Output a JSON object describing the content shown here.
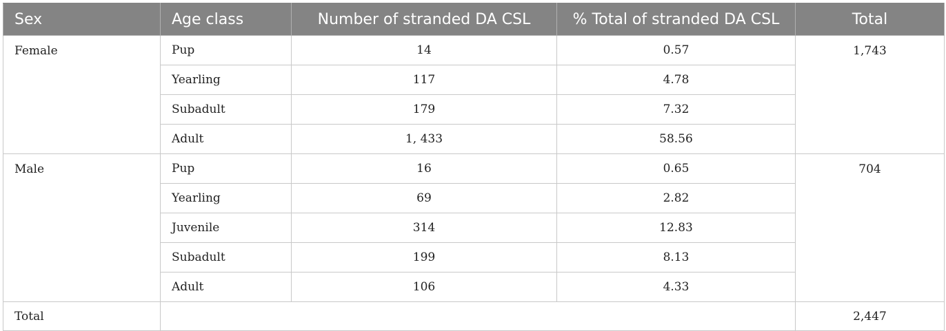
{
  "table": {
    "headers": {
      "sex": "Sex",
      "age_class": "Age class",
      "number": "Number of stranded DA CSL",
      "percent": "% Total of stranded DA CSL",
      "total": "Total"
    },
    "groups": [
      {
        "sex": "Female",
        "total": "1,743",
        "rows": [
          {
            "age_class": "Pup",
            "number": "14",
            "percent": "0.57"
          },
          {
            "age_class": "Yearling",
            "number": "117",
            "percent": "4.78"
          },
          {
            "age_class": "Subadult",
            "number": "179",
            "percent": "7.32"
          },
          {
            "age_class": "Adult",
            "number": "1, 433",
            "percent": "58.56"
          }
        ]
      },
      {
        "sex": "Male",
        "total": "704",
        "rows": [
          {
            "age_class": "Pup",
            "number": "16",
            "percent": "0.65"
          },
          {
            "age_class": "Yearling",
            "number": "69",
            "percent": "2.82"
          },
          {
            "age_class": "Juvenile",
            "number": "314",
            "percent": "12.83"
          },
          {
            "age_class": "Subadult",
            "number": "199",
            "percent": "8.13"
          },
          {
            "age_class": "Adult",
            "number": "106",
            "percent": "4.33"
          }
        ]
      }
    ],
    "footer": {
      "label": "Total",
      "total": "2,447"
    }
  },
  "colors": {
    "header_background": "#848484",
    "header_text": "#ffffff",
    "grid_lines": "#c8c8c8"
  }
}
